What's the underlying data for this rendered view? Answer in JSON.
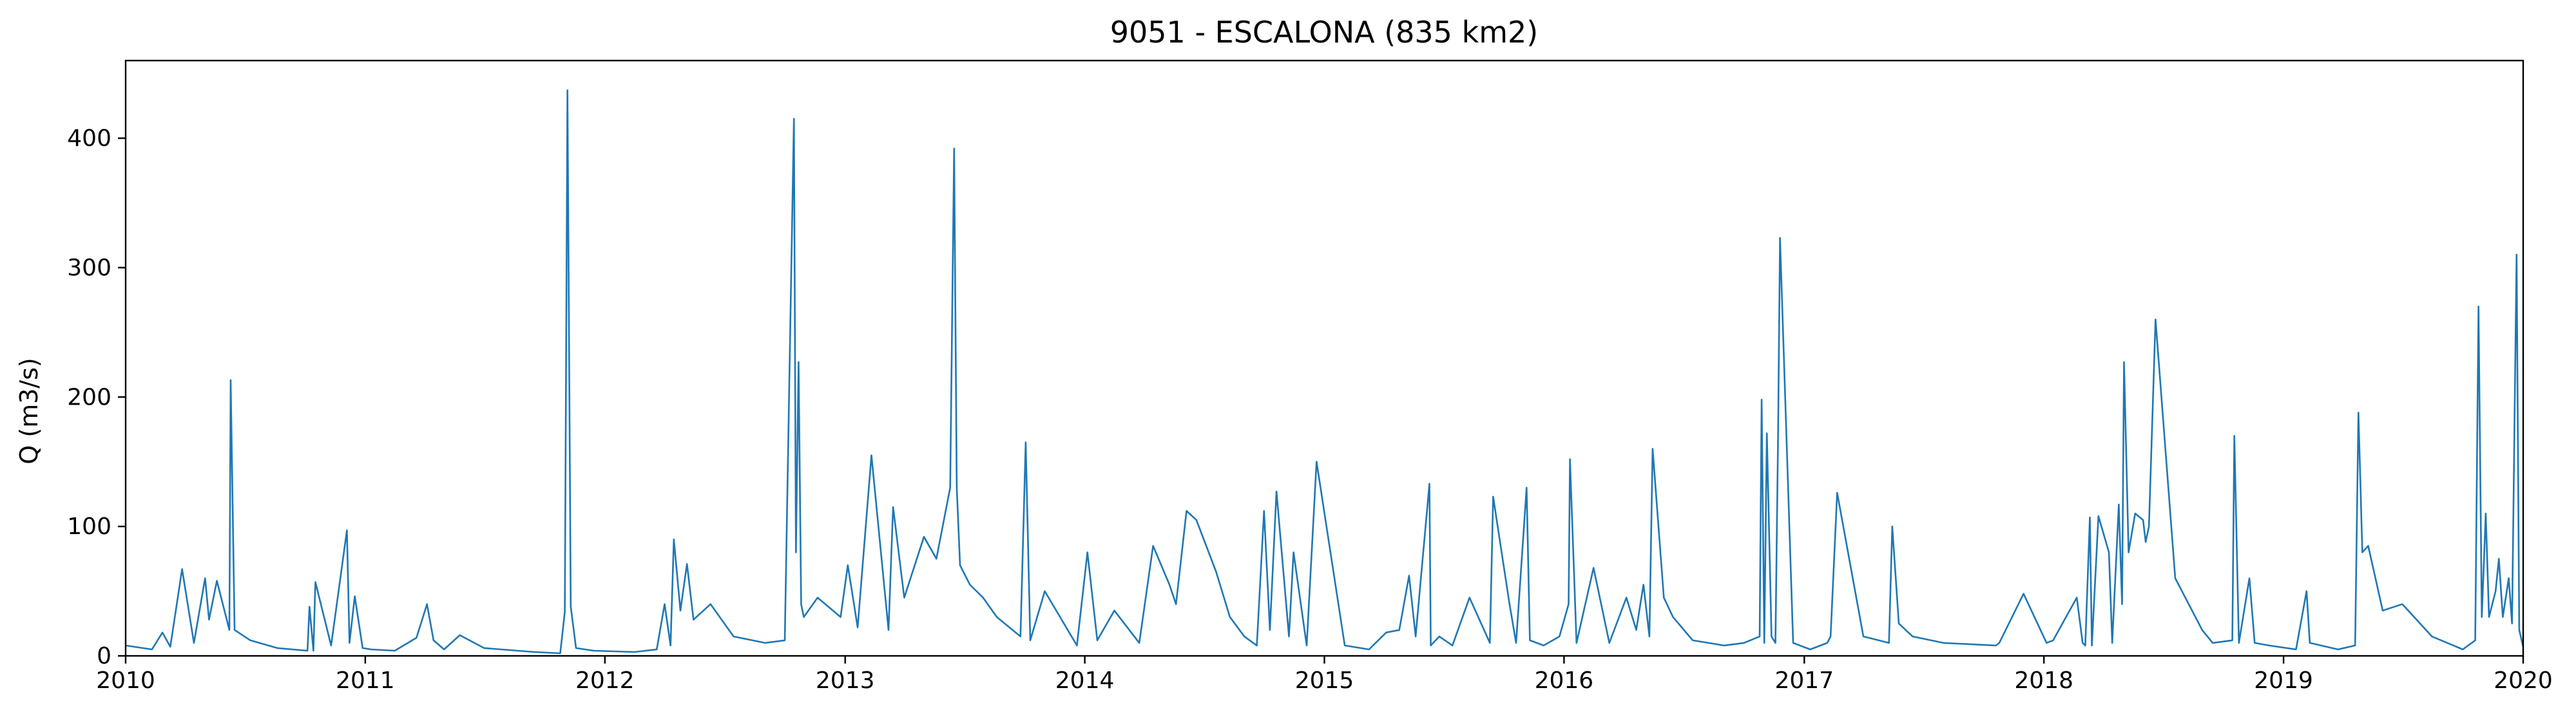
{
  "chart_data": {
    "type": "line",
    "title": "9051 - ESCALONA (835 km2)",
    "xlabel": "",
    "ylabel": "Q (m3/s)",
    "xlim": [
      "2010-01-01",
      "2020-01-01"
    ],
    "ylim": [
      0,
      460
    ],
    "x_ticks": [
      "2010",
      "2011",
      "2012",
      "2013",
      "2014",
      "2015",
      "2016",
      "2017",
      "2018",
      "2019",
      "2020"
    ],
    "y_ticks": [
      0,
      100,
      200,
      300,
      400
    ],
    "grid": false,
    "legend": "none",
    "line_color": "#1f77b4",
    "series": [
      {
        "x": [
          "2010-01-01",
          "2010-02-10",
          "2010-02-26",
          "2010-03-10",
          "2010-03-28",
          "2010-04-15",
          "2010-05-02",
          "2010-05-08",
          "2010-05-20",
          "2010-06-08",
          "2010-06-10",
          "2010-06-16",
          "2010-07-10",
          "2010-08-20",
          "2010-10-05",
          "2010-10-08",
          "2010-10-14",
          "2010-10-17",
          "2010-11-10",
          "2010-12-04",
          "2010-12-08",
          "2010-12-16",
          "2010-12-28",
          "2011-01-10",
          "2011-02-15",
          "2011-03-20",
          "2011-04-05",
          "2011-04-15",
          "2011-05-01",
          "2011-05-25",
          "2011-07-01",
          "2011-09-15",
          "2011-10-25",
          "2011-11-01",
          "2011-11-05",
          "2011-11-10",
          "2011-11-18",
          "2011-12-15",
          "2012-02-15",
          "2012-03-20",
          "2012-04-01",
          "2012-04-10",
          "2012-04-15",
          "2012-04-25",
          "2012-05-05",
          "2012-05-15",
          "2012-06-10",
          "2012-07-15",
          "2012-09-01",
          "2012-10-01",
          "2012-10-15",
          "2012-10-18",
          "2012-10-22",
          "2012-10-26",
          "2012-10-30",
          "2012-11-20",
          "2012-12-25",
          "2013-01-05",
          "2013-01-20",
          "2013-02-10",
          "2013-03-08",
          "2013-03-15",
          "2013-04-01",
          "2013-05-01",
          "2013-05-20",
          "2013-06-10",
          "2013-06-16",
          "2013-06-20",
          "2013-06-25",
          "2013-07-10",
          "2013-07-30",
          "2013-08-20",
          "2013-09-25",
          "2013-10-03",
          "2013-10-10",
          "2013-11-01",
          "2013-12-20",
          "2014-01-05",
          "2014-01-20",
          "2014-02-15",
          "2014-03-25",
          "2014-04-15",
          "2014-05-10",
          "2014-05-20",
          "2014-06-05",
          "2014-06-20",
          "2014-07-20",
          "2014-08-10",
          "2014-09-01",
          "2014-09-20",
          "2014-10-01",
          "2014-10-10",
          "2014-10-20",
          "2014-11-08",
          "2014-11-15",
          "2014-12-05",
          "2014-12-20",
          "2015-02-01",
          "2015-03-10",
          "2015-04-05",
          "2015-04-25",
          "2015-05-10",
          "2015-05-20",
          "2015-06-10",
          "2015-06-12",
          "2015-06-25",
          "2015-07-15",
          "2015-08-10",
          "2015-09-10",
          "2015-09-15",
          "2015-10-10",
          "2015-10-20",
          "2015-11-05",
          "2015-11-10",
          "2015-12-01",
          "2015-12-25",
          "2016-01-08",
          "2016-01-10",
          "2016-01-20",
          "2016-02-15",
          "2016-03-10",
          "2016-04-05",
          "2016-04-20",
          "2016-05-01",
          "2016-05-10",
          "2016-05-15",
          "2016-06-01",
          "2016-06-15",
          "2016-07-15",
          "2016-09-01",
          "2016-10-01",
          "2016-10-25",
          "2016-10-28",
          "2016-11-01",
          "2016-11-05",
          "2016-11-12",
          "2016-11-18",
          "2016-11-22",
          "2016-11-25",
          "2016-12-15",
          "2017-01-10",
          "2017-02-05",
          "2017-02-10",
          "2017-02-20",
          "2017-04-01",
          "2017-05-10",
          "2017-05-15",
          "2017-05-25",
          "2017-06-15",
          "2017-08-01",
          "2017-10-20",
          "2017-10-25",
          "2017-12-01",
          "2018-01-05",
          "2018-01-15",
          "2018-02-20",
          "2018-03-01",
          "2018-03-05",
          "2018-03-12",
          "2018-03-15",
          "2018-03-25",
          "2018-04-10",
          "2018-04-15",
          "2018-04-25",
          "2018-04-30",
          "2018-05-03",
          "2018-05-10",
          "2018-05-20",
          "2018-06-01",
          "2018-06-05",
          "2018-06-10",
          "2018-06-20",
          "2018-07-20",
          "2018-08-30",
          "2018-09-15",
          "2018-10-15",
          "2018-10-18",
          "2018-10-25",
          "2018-11-10",
          "2018-11-18",
          "2018-12-10",
          "2019-01-20",
          "2019-02-05",
          "2019-02-10",
          "2019-03-25",
          "2019-04-20",
          "2019-04-25",
          "2019-05-01",
          "2019-05-10",
          "2019-06-01",
          "2019-07-01",
          "2019-08-15",
          "2019-10-01",
          "2019-10-20",
          "2019-10-25",
          "2019-10-30",
          "2019-11-05",
          "2019-11-10",
          "2019-11-20",
          "2019-11-25",
          "2019-12-01",
          "2019-12-10",
          "2019-12-15",
          "2019-12-22",
          "2019-12-26",
          "2020-01-01"
        ],
        "y": [
          8,
          5,
          18,
          7,
          67,
          10,
          60,
          28,
          58,
          20,
          213,
          20,
          12,
          6,
          4,
          38,
          4,
          57,
          8,
          97,
          10,
          46,
          6,
          5,
          4,
          14,
          40,
          12,
          5,
          16,
          6,
          3,
          2,
          34,
          437,
          38,
          6,
          4,
          3,
          5,
          40,
          8,
          90,
          35,
          71,
          28,
          40,
          15,
          10,
          12,
          415,
          80,
          227,
          40,
          30,
          45,
          30,
          70,
          22,
          155,
          20,
          115,
          45,
          92,
          75,
          130,
          392,
          130,
          70,
          55,
          45,
          30,
          15,
          165,
          12,
          50,
          8,
          80,
          12,
          35,
          10,
          85,
          55,
          40,
          112,
          105,
          65,
          30,
          15,
          8,
          112,
          20,
          127,
          15,
          80,
          8,
          150,
          8,
          5,
          18,
          20,
          62,
          15,
          133,
          8,
          15,
          8,
          45,
          10,
          123,
          40,
          10,
          130,
          12,
          8,
          15,
          40,
          152,
          10,
          68,
          10,
          45,
          20,
          55,
          15,
          160,
          45,
          30,
          12,
          8,
          10,
          15,
          198,
          10,
          172,
          15,
          10,
          170,
          323,
          10,
          5,
          10,
          15,
          126,
          15,
          10,
          100,
          25,
          15,
          10,
          8,
          10,
          48,
          10,
          12,
          45,
          10,
          8,
          107,
          8,
          108,
          80,
          10,
          117,
          40,
          227,
          80,
          110,
          105,
          88,
          100,
          260,
          60,
          20,
          10,
          12,
          170,
          10,
          60,
          10,
          8,
          5,
          50,
          10,
          5,
          8,
          188,
          80,
          85,
          35,
          40,
          15,
          5,
          12,
          270,
          30,
          110,
          30,
          50,
          75,
          30,
          60,
          25,
          310,
          20,
          7
        ]
      }
    ]
  }
}
